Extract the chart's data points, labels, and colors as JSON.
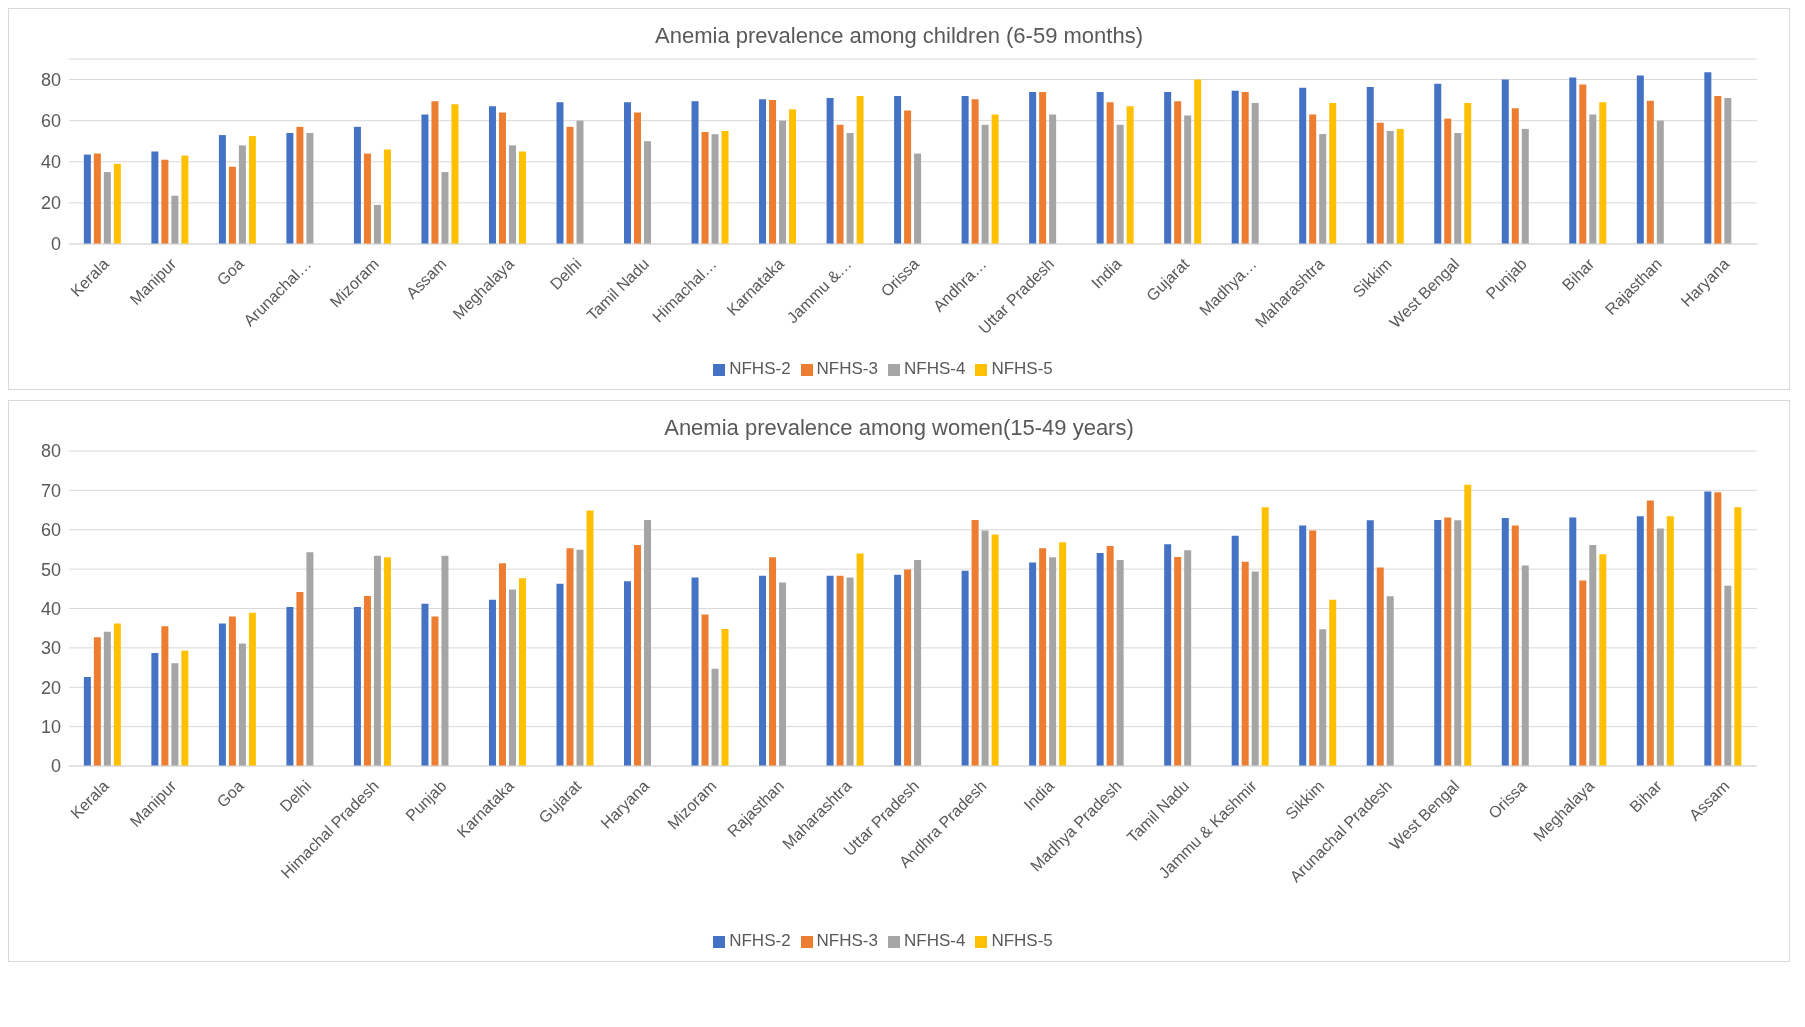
{
  "chart_data": [
    {
      "type": "bar",
      "title": "Anemia prevalence among children (6-59 months)",
      "categories": [
        "Kerala",
        "Manipur",
        "Goa",
        "Arunachal…",
        "Mizoram",
        "Assam",
        "Meghalaya",
        "Delhi",
        "Tamil Nadu",
        "Himachal…",
        "Karnataka",
        "Jammu &…",
        "Orissa",
        "Andhra…",
        "Uttar Pradesh",
        "India",
        "Gujarat",
        "Madhya…",
        "Maharashtra",
        "Sikkim",
        "West Bengal",
        "Punjab",
        "Bihar",
        "Rajasthan",
        "Haryana"
      ],
      "series": [
        {
          "name": "NFHS-2",
          "color": "#4472c4",
          "values": [
            43.5,
            45,
            53,
            54,
            57,
            63,
            67,
            69,
            69,
            69.5,
            70.4,
            71,
            72,
            72,
            74,
            74,
            74,
            74.6,
            76,
            76.4,
            78,
            80,
            81,
            82,
            83.5
          ]
        },
        {
          "name": "NFHS-3",
          "color": "#ed7d31",
          "values": [
            44,
            41,
            37.6,
            57,
            44,
            69.5,
            64,
            57,
            64,
            54.5,
            70,
            58,
            65,
            70.4,
            74,
            69,
            69.5,
            74,
            63,
            59,
            61,
            66,
            77.6,
            69.7,
            72
          ]
        },
        {
          "name": "NFHS-4",
          "color": "#a5a5a5",
          "values": [
            35,
            23.5,
            48,
            54,
            19,
            35,
            48,
            60,
            50,
            53.4,
            60,
            54,
            44,
            58,
            63,
            58,
            62.5,
            68.6,
            53.5,
            55,
            54,
            56,
            63,
            60,
            71
          ]
        },
        {
          "name": "NFHS-5",
          "color": "#ffc000",
          "values": [
            39,
            43,
            52.5,
            null,
            46,
            68,
            45,
            null,
            null,
            55,
            65.6,
            72,
            null,
            63,
            null,
            67,
            80,
            null,
            68.6,
            56,
            68.6,
            null,
            69,
            null,
            null
          ]
        }
      ],
      "ylim": [
        0,
        90
      ],
      "yticks": [
        0,
        20,
        40,
        60,
        80
      ],
      "grid": "y",
      "legend": "bottom"
    },
    {
      "type": "bar",
      "title": "Anemia prevalence among women(15-49 years)",
      "categories": [
        "Kerala",
        "Manipur",
        "Goa",
        "Delhi",
        "Himachal Pradesh",
        "Punjab",
        "Karnataka",
        "Gujarat",
        "Haryana",
        "Mizoram",
        "Rajasthan",
        "Maharashtra",
        "Uttar Pradesh",
        "Andhra Pradesh",
        "India",
        "Madhya Pradesh",
        "Tamil Nadu",
        "Jammu & Kashmir",
        "Sikkim",
        "Arunachal Pradesh",
        "West Bengal",
        "Orissa",
        "Meghalaya",
        "Bihar",
        "Assam"
      ],
      "series": [
        {
          "name": "NFHS-2",
          "color": "#4472c4",
          "values": [
            22.6,
            28.7,
            36.2,
            40.4,
            40.4,
            41.2,
            42.2,
            46.3,
            46.9,
            47.9,
            48.3,
            48.3,
            48.6,
            49.6,
            51.7,
            54.1,
            56.3,
            58.5,
            61.1,
            62.4,
            62.5,
            63,
            63.1,
            63.4,
            69.7
          ]
        },
        {
          "name": "NFHS-3",
          "color": "#ed7d31",
          "values": [
            32.7,
            35.5,
            38,
            44.2,
            43.2,
            38,
            51.5,
            55.3,
            56.1,
            38.5,
            53,
            48.3,
            49.9,
            62.5,
            55.3,
            55.9,
            53.1,
            51.9,
            59.8,
            50.4,
            63.1,
            61.1,
            47.1,
            67.4,
            69.5
          ]
        },
        {
          "name": "NFHS-4",
          "color": "#a5a5a5",
          "values": [
            34.1,
            26.1,
            31.1,
            54.3,
            53.4,
            53.4,
            44.8,
            54.9,
            62.5,
            24.7,
            46.6,
            47.9,
            52.3,
            59.8,
            53,
            52.3,
            54.8,
            49.4,
            34.7,
            43.1,
            62.4,
            50.9,
            56.1,
            60.3,
            45.8
          ]
        },
        {
          "name": "NFHS-5",
          "color": "#ffc000",
          "values": [
            36.2,
            29.3,
            38.9,
            null,
            53,
            null,
            47.7,
            64.9,
            null,
            34.8,
            null,
            54,
            null,
            58.8,
            56.8,
            null,
            null,
            65.7,
            42.2,
            null,
            71.4,
            null,
            53.8,
            63.4,
            65.7
          ]
        }
      ],
      "ylim": [
        0,
        80
      ],
      "yticks": [
        0,
        10,
        20,
        30,
        40,
        50,
        60,
        70,
        80
      ],
      "grid": "y",
      "legend": "bottom"
    }
  ]
}
